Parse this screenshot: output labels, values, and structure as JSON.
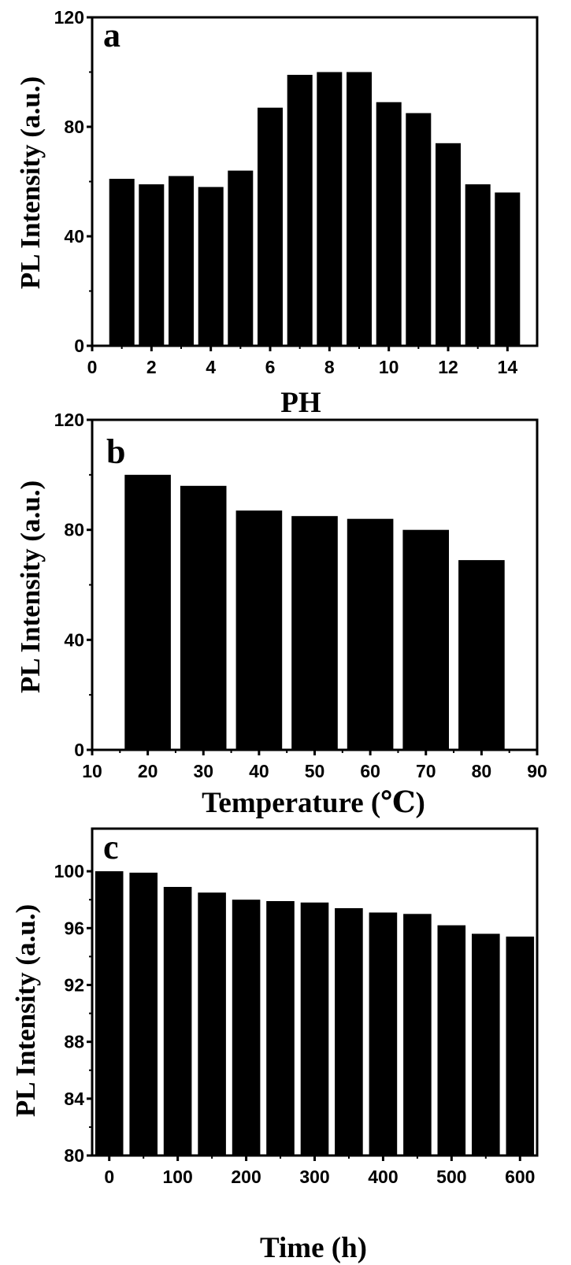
{
  "colors": {
    "bar": "#000000",
    "axis": "#000000",
    "background": "#ffffff"
  },
  "chart_data": [
    {
      "type": "bar",
      "panel_label": "a",
      "xlabel": "PH",
      "ylabel": "PL Intensity (a.u.)",
      "xlim": [
        0,
        15
      ],
      "ylim": [
        0,
        120
      ],
      "x_ticks": [
        0,
        2,
        4,
        6,
        8,
        10,
        12,
        14
      ],
      "y_ticks": [
        0,
        40,
        80,
        120
      ],
      "bar_width": 0.85,
      "x": [
        1,
        2,
        3,
        4,
        5,
        6,
        7,
        8,
        9,
        10,
        11,
        12,
        13,
        14
      ],
      "values": [
        61,
        59,
        62,
        58,
        64,
        87,
        99,
        100,
        100,
        89,
        85,
        74,
        59,
        56
      ],
      "grid": false
    },
    {
      "type": "bar",
      "panel_label": "b",
      "xlabel": "Temperature (℃)",
      "ylabel": "PL Intensity (a.u.)",
      "xlim": [
        10,
        90
      ],
      "ylim": [
        0,
        120
      ],
      "x_ticks": [
        10,
        20,
        30,
        40,
        50,
        60,
        70,
        80,
        90
      ],
      "y_ticks": [
        0,
        40,
        80,
        120
      ],
      "bar_width": 8.3,
      "x": [
        20,
        30,
        40,
        50,
        60,
        70,
        80
      ],
      "values": [
        100,
        96,
        87,
        85,
        84,
        80,
        69
      ],
      "grid": false
    },
    {
      "type": "bar",
      "panel_label": "c",
      "xlabel": "Time (h)",
      "ylabel": "PL Intensity (a.u.)",
      "xlim": [
        -25,
        625
      ],
      "ylim": [
        80,
        103
      ],
      "x_ticks": [
        0,
        100,
        200,
        300,
        400,
        500,
        600
      ],
      "y_ticks": [
        80,
        84,
        88,
        92,
        96,
        100
      ],
      "bar_width": 41,
      "x": [
        0,
        50,
        100,
        150,
        200,
        250,
        300,
        350,
        400,
        450,
        500,
        550,
        600
      ],
      "values": [
        100,
        99.9,
        98.9,
        98.5,
        98,
        97.9,
        97.8,
        97.4,
        97.1,
        97,
        96.2,
        95.6,
        95.4
      ],
      "grid": false
    }
  ]
}
